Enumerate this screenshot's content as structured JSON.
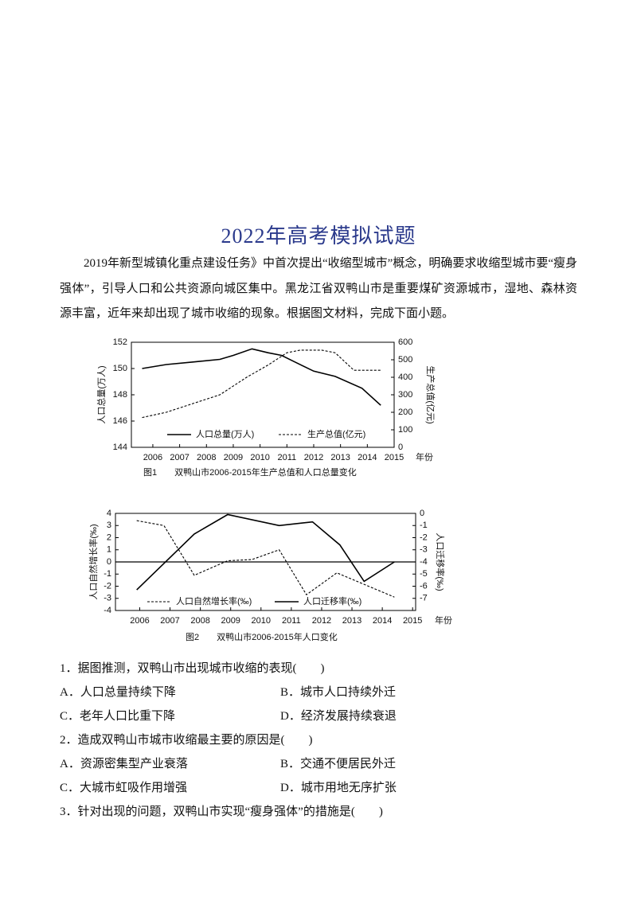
{
  "header": {
    "title": "2022年高考模拟试题"
  },
  "intro": "2019年新型城镇化重点建设任务》中首次提出“收缩型城市”概念，明确要求收缩型城市要“瘦身强体”，引导人口和公共资源向城区集中。黑龙江省双鸭山市是重要煤矿资源城市，湿地、森林资源丰富，近年来却出现了城市收缩的现象。根据图文材料，完成下面小题。",
  "chart_data": [
    {
      "type": "line",
      "caption": "图1　　双鸭山市2006-2015年生产总值和人口总量变化",
      "x_label": "年份",
      "y_label": "人口总量(万人)",
      "y2_label": "生产总值(亿元)",
      "xlim": [
        2005.2,
        2015
      ],
      "xticks": [
        2006,
        2007,
        2008,
        2009,
        2010,
        2011,
        2012,
        2013,
        2014,
        2015
      ],
      "ylim": [
        144,
        152
      ],
      "yticks": [
        144,
        146,
        148,
        150,
        152
      ],
      "y2lim": [
        0,
        600
      ],
      "y2ticks": [
        0,
        100,
        200,
        300,
        400,
        500,
        600
      ],
      "series": [
        {
          "name": "人口总量(万人)",
          "color": "#000000",
          "line_style": "solid",
          "x": [
            2005.6,
            2006.5,
            2007.5,
            2008.5,
            2009.0,
            2009.7,
            2010.3,
            2010.8,
            2011.3,
            2012.0,
            2012.8,
            2013.8,
            2014.5
          ],
          "values": [
            150.0,
            150.3,
            150.5,
            150.7,
            151.0,
            151.5,
            151.2,
            151.0,
            150.5,
            149.8,
            149.4,
            148.5,
            147.2
          ]
        },
        {
          "name": "生产总值(亿元)",
          "color": "#000000",
          "line_style": "dashed",
          "axis": "y2",
          "x": [
            2005.6,
            2006.5,
            2007.5,
            2008.5,
            2009.5,
            2010.3,
            2011.0,
            2011.5,
            2012.3,
            2012.8,
            2013.5,
            2014.5
          ],
          "values": [
            170,
            200,
            250,
            300,
            400,
            470,
            540,
            555,
            555,
            540,
            440,
            440
          ]
        }
      ]
    },
    {
      "type": "line",
      "caption": "图2　　双鸭山市2006-2015年人口变化",
      "x_label": "年份",
      "y_label": "人口自然增长率(‰)",
      "y2_label": "人口迁移率(‰)",
      "xlim": [
        2005.2,
        2015.1
      ],
      "xticks": [
        2006,
        2007,
        2008,
        2009,
        2010,
        2011,
        2012,
        2013,
        2014,
        2015
      ],
      "ylim": [
        -4,
        4
      ],
      "yticks": [
        -4,
        -3,
        -2,
        -1,
        0,
        1,
        2,
        3,
        4
      ],
      "y2lim": [
        -8,
        0
      ],
      "y2ticks": [
        -7,
        -6,
        -5,
        -4,
        -3,
        -2,
        -1,
        0
      ],
      "series": [
        {
          "name": "人口自然增长率(‰)",
          "color": "#000000",
          "line_style": "dashed",
          "x": [
            2005.9,
            2006.8,
            2007.8,
            2008.9,
            2009.7,
            2010.6,
            2011.5,
            2012.5,
            2014.4
          ],
          "values": [
            3.4,
            3.0,
            -1.1,
            0.1,
            0.2,
            1.0,
            -2.7,
            -0.9,
            -2.9
          ]
        },
        {
          "name": "人口迁移率(‰)",
          "color": "#000000",
          "line_style": "solid",
          "axis": "y2",
          "x": [
            2005.9,
            2007.8,
            2008.9,
            2010.6,
            2011.7,
            2012.6,
            2013.4,
            2014.4
          ],
          "values": [
            -6.3,
            -1.7,
            -0.1,
            -1.0,
            -0.7,
            -2.6,
            -5.6,
            -4.0
          ]
        }
      ]
    }
  ],
  "questions": [
    {
      "stem": "1．据图推测，双鸭山市出现城市收缩的表现(　　)",
      "options": [
        "A．人口总量持续下降",
        "B．城市人口持续外迁",
        "C．老年人口比重下降",
        "D．经济发展持续衰退"
      ]
    },
    {
      "stem": "2．造成双鸭山市城市收缩最主要的原因是(　　)",
      "options": [
        "A．资源密集型产业衰落",
        "B．交通不便居民外迁",
        "C．大城市虹吸作用增强",
        "D．城市用地无序扩张"
      ]
    },
    {
      "stem": "3．针对出现的问题，双鸭山市实现“瘦身强体”的措施是(　　)"
    }
  ]
}
